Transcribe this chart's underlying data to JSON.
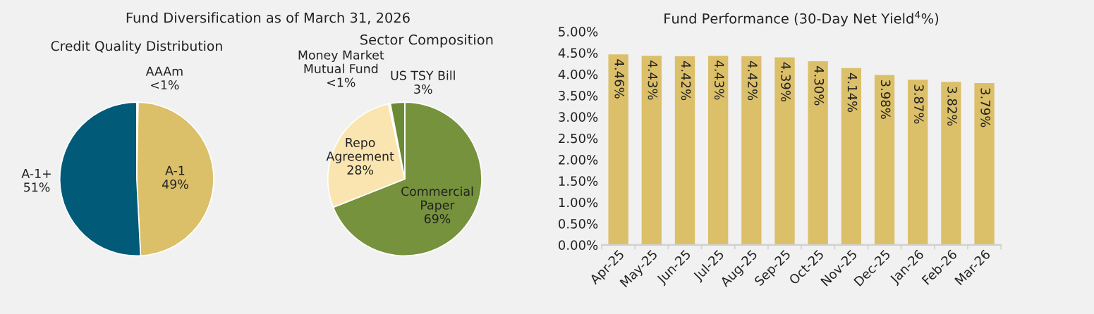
{
  "chart_data": [
    {
      "type": "pie",
      "title": "Fund Diversification as of March 31, 2026",
      "subtitle": "Credit Quality Distribution",
      "categories": [
        "AAAm",
        "A-1",
        "A-1+"
      ],
      "values": [
        0.3,
        48.9,
        50.8
      ],
      "value_labels": [
        "<1%",
        "49%",
        "51%"
      ],
      "colors": [
        "#f4e7bd",
        "#dbbf69",
        "#005a78"
      ]
    },
    {
      "type": "pie",
      "title": "Sector Composition",
      "categories": [
        "Commercial\nPaper",
        "Repo\nAgreement",
        "Money Market\nMutual Fund",
        "US TSY Bill"
      ],
      "values": [
        69,
        27.6,
        0.4,
        3
      ],
      "value_labels": [
        "69%",
        "28%",
        "<1%",
        "3%"
      ],
      "colors": [
        "#76923c",
        "#fae5b1",
        "#f7f0dc",
        "#6a8a36"
      ]
    },
    {
      "type": "bar",
      "title": "Fund Performance (30-Day Net Yield$^{4}$%)",
      "categories": [
        "Apr-25",
        "May-25",
        "Jun-25",
        "Jul-25",
        "Aug-25",
        "Sep-25",
        "Oct-25",
        "Nov-25",
        "Dec-25",
        "Jan-26",
        "Feb-26",
        "Mar-26"
      ],
      "values": [
        4.46,
        4.43,
        4.42,
        4.43,
        4.42,
        4.39,
        4.3,
        4.14,
        3.98,
        3.87,
        3.82,
        3.79
      ],
      "value_labels": [
        "4.46%",
        "4.43%",
        "4.42%",
        "4.43%",
        "4.42%",
        "4.39%",
        "4.30%",
        "4.14%",
        "3.98%",
        "3.87%",
        "3.82%",
        "3.79%"
      ],
      "color": "#dbbf69",
      "ylim": [
        0,
        5
      ],
      "yticks": [
        {
          "value": 0,
          "label": "0.00%"
        },
        {
          "value": 0.5,
          "label": "0.50%"
        },
        {
          "value": 1,
          "label": "1.00%"
        },
        {
          "value": 1.5,
          "label": "1.50%"
        },
        {
          "value": 2,
          "label": "2.00%"
        },
        {
          "value": 2.5,
          "label": "2.50%"
        },
        {
          "value": 3,
          "label": "3.00%"
        },
        {
          "value": 3.5,
          "label": "3.50%"
        },
        {
          "value": 4,
          "label": "4.00%"
        },
        {
          "value": 4.5,
          "label": "4.50%"
        },
        {
          "value": 5,
          "label": "5.00%"
        }
      ],
      "grid": false
    }
  ]
}
